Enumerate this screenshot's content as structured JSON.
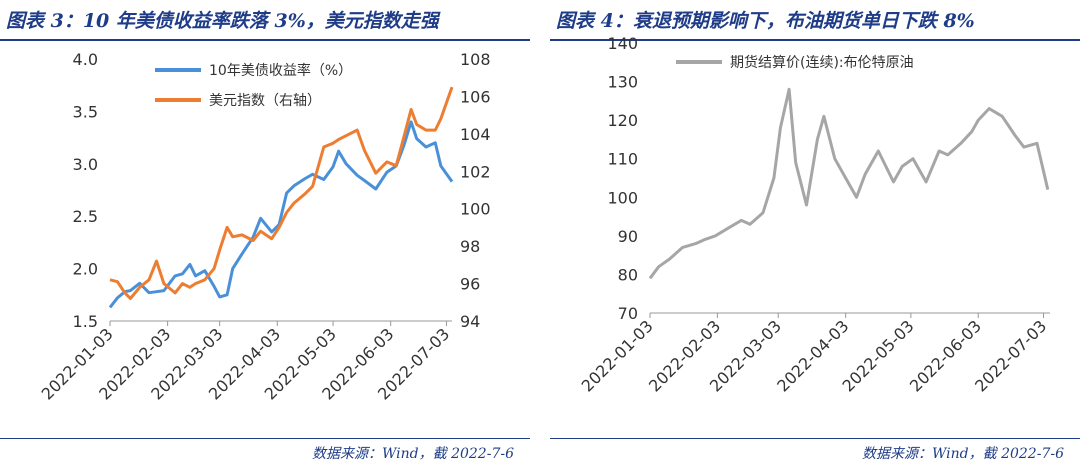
{
  "charts": [
    {
      "title": "图表 3：10 年美债收益率跌落 3%，美元指数走强",
      "source": "数据来源：Wind，截 2022-7-6",
      "chart_data": {
        "type": "line",
        "x_ticks": [
          "2022-01-03",
          "2022-02-03",
          "2022-03-03",
          "2022-04-03",
          "2022-05-03",
          "2022-06-03",
          "2022-07-03"
        ],
        "y_left": {
          "ticks": [
            "4.0",
            "3.5",
            "3.0",
            "2.5",
            "2.0",
            "1.5"
          ],
          "range": [
            1.5,
            4.0
          ]
        },
        "y_right": {
          "ticks": [
            "108",
            "106",
            "104",
            "102",
            "100",
            "98",
            "96",
            "94"
          ],
          "range": [
            94,
            108
          ]
        },
        "legend_position": "top-left",
        "series": [
          {
            "name": "10年美债收益率（%）",
            "axis": "left",
            "color": "#4a90d9",
            "x": [
              "2022-01-03",
              "2022-01-07",
              "2022-01-11",
              "2022-01-14",
              "2022-01-19",
              "2022-01-24",
              "2022-01-28",
              "2022-02-01",
              "2022-02-07",
              "2022-02-11",
              "2022-02-15",
              "2022-02-18",
              "2022-02-23",
              "2022-02-28",
              "2022-03-03",
              "2022-03-07",
              "2022-03-10",
              "2022-03-15",
              "2022-03-21",
              "2022-03-25",
              "2022-03-31",
              "2022-04-04",
              "2022-04-08",
              "2022-04-12",
              "2022-04-18",
              "2022-04-22",
              "2022-04-28",
              "2022-05-03",
              "2022-05-06",
              "2022-05-10",
              "2022-05-16",
              "2022-05-20",
              "2022-05-26",
              "2022-06-01",
              "2022-06-06",
              "2022-06-10",
              "2022-06-14",
              "2022-06-17",
              "2022-06-22",
              "2022-06-27",
              "2022-06-30",
              "2022-07-06"
            ],
            "values": [
              1.63,
              1.72,
              1.78,
              1.79,
              1.86,
              1.77,
              1.78,
              1.79,
              1.93,
              1.95,
              2.04,
              1.93,
              1.98,
              1.83,
              1.73,
              1.75,
              2.0,
              2.14,
              2.3,
              2.48,
              2.35,
              2.42,
              2.72,
              2.79,
              2.86,
              2.9,
              2.85,
              2.97,
              3.12,
              3.0,
              2.89,
              2.84,
              2.76,
              2.92,
              2.98,
              3.17,
              3.4,
              3.24,
              3.16,
              3.2,
              2.98,
              2.83
            ]
          },
          {
            "name": "美元指数（右轴）",
            "axis": "right",
            "color": "#ed7d31",
            "x": [
              "2022-01-03",
              "2022-01-07",
              "2022-01-11",
              "2022-01-14",
              "2022-01-19",
              "2022-01-24",
              "2022-01-28",
              "2022-02-01",
              "2022-02-07",
              "2022-02-11",
              "2022-02-15",
              "2022-02-18",
              "2022-02-23",
              "2022-02-28",
              "2022-03-03",
              "2022-03-07",
              "2022-03-10",
              "2022-03-15",
              "2022-03-21",
              "2022-03-25",
              "2022-03-31",
              "2022-04-04",
              "2022-04-08",
              "2022-04-12",
              "2022-04-18",
              "2022-04-22",
              "2022-04-28",
              "2022-05-03",
              "2022-05-06",
              "2022-05-10",
              "2022-05-16",
              "2022-05-20",
              "2022-05-26",
              "2022-06-01",
              "2022-06-06",
              "2022-06-10",
              "2022-06-14",
              "2022-06-17",
              "2022-06-22",
              "2022-06-27",
              "2022-06-30",
              "2022-07-06"
            ],
            "values": [
              96.2,
              96.1,
              95.5,
              95.2,
              95.8,
              96.2,
              97.2,
              96.0,
              95.5,
              96.0,
              95.8,
              96.0,
              96.2,
              96.8,
              97.8,
              99.0,
              98.5,
              98.6,
              98.3,
              98.8,
              98.4,
              99.0,
              99.8,
              100.3,
              100.8,
              101.2,
              103.3,
              103.5,
              103.7,
              103.9,
              104.2,
              103.1,
              101.9,
              102.5,
              102.3,
              103.8,
              105.3,
              104.5,
              104.2,
              104.2,
              104.8,
              106.5
            ]
          }
        ]
      }
    },
    {
      "title": "图表 4：衰退预期影响下，布油期货单日下跌 8%",
      "source": "数据来源：Wind，截 2022-7-6",
      "chart_data": {
        "type": "line",
        "x_ticks": [
          "2022-01-03",
          "2022-02-03",
          "2022-03-03",
          "2022-04-03",
          "2022-05-03",
          "2022-06-03",
          "2022-07-03"
        ],
        "y_left": {
          "ticks": [
            "140",
            "130",
            "120",
            "110",
            "100",
            "90",
            "80",
            "70"
          ],
          "range": [
            70,
            140
          ]
        },
        "legend_position": "top",
        "series": [
          {
            "name": "期货结算价(连续):布伦特原油",
            "axis": "left",
            "color": "#a6a6a6",
            "x": [
              "2022-01-03",
              "2022-01-07",
              "2022-01-12",
              "2022-01-18",
              "2022-01-24",
              "2022-01-28",
              "2022-02-02",
              "2022-02-08",
              "2022-02-14",
              "2022-02-18",
              "2022-02-24",
              "2022-03-01",
              "2022-03-04",
              "2022-03-08",
              "2022-03-11",
              "2022-03-16",
              "2022-03-21",
              "2022-03-24",
              "2022-03-29",
              "2022-04-04",
              "2022-04-08",
              "2022-04-12",
              "2022-04-18",
              "2022-04-25",
              "2022-04-29",
              "2022-05-04",
              "2022-05-10",
              "2022-05-16",
              "2022-05-20",
              "2022-05-26",
              "2022-05-31",
              "2022-06-03",
              "2022-06-08",
              "2022-06-14",
              "2022-06-20",
              "2022-06-24",
              "2022-06-30",
              "2022-07-05"
            ],
            "values": [
              79,
              82,
              84,
              87,
              88,
              89,
              90,
              92,
              94,
              93,
              96,
              105,
              118,
              128,
              109,
              98,
              115,
              121,
              110,
              104,
              100,
              106,
              112,
              104,
              108,
              110,
              104,
              112,
              111,
              114,
              117,
              120,
              123,
              121,
              116,
              113,
              114,
              102
            ]
          }
        ]
      }
    }
  ]
}
